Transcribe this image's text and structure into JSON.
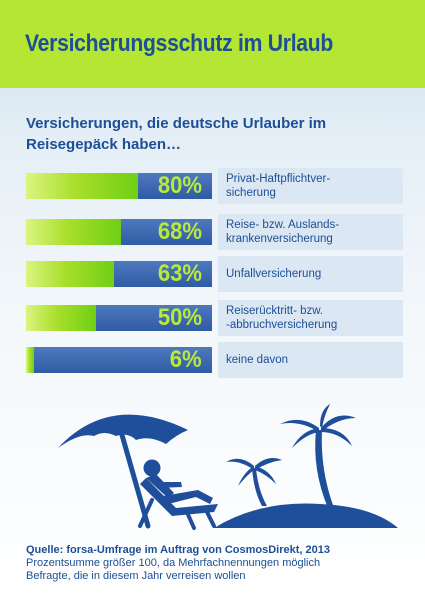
{
  "header": {
    "title": "Versicherungsschutz im Urlaub"
  },
  "colors": {
    "header_bg": "#b5e634",
    "text_blue": "#1c4f96",
    "bar_blue": "#3a64ad",
    "bar_green": "#8ed61f"
  },
  "chart_data": {
    "type": "bar",
    "orientation": "horizontal",
    "title": "Versicherungen, die deutsche Urlauber im Reisegepäck haben…",
    "categories": [
      "Privat-Haftpflichtver-sicherung",
      "Reise- bzw. Auslands-krankenversicherung",
      "Unfallversicherung",
      "Reiserücktritt- bzw. -abbruchversicherung",
      "keine davon"
    ],
    "values": [
      80,
      68,
      63,
      50,
      6
    ],
    "value_labels": [
      "80%",
      "68%",
      "63%",
      "50%",
      "6%"
    ],
    "label_lines": [
      [
        "Privat-Haftpflichtver-",
        "sicherung"
      ],
      [
        "Reise- bzw. Auslands-",
        "krankenversicherung"
      ],
      [
        "Unfallversicherung"
      ],
      [
        "Reiserücktritt- bzw.",
        "-abbruchversicherung"
      ],
      [
        "keine davon"
      ]
    ],
    "unit": "%",
    "xlim": [
      0,
      100
    ],
    "grid": false
  },
  "source": {
    "title": "Quelle: forsa-Umfrage im Auftrag von CosmosDirekt, 2013",
    "note_lines": [
      "Prozentsumme größer 100, da Mehrfachnennungen möglich",
      "Befragte, die in diesem Jahr verreisen wollen"
    ]
  },
  "illustration": {
    "icons": [
      "beach-umbrella-icon",
      "person-in-deckchair-icon",
      "palm-island-icon"
    ]
  }
}
